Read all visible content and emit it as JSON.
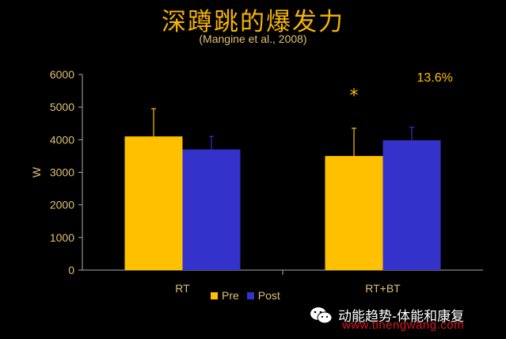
{
  "header": {
    "title": "深蹲跳的爆发力",
    "citation": "(Mangine et al., 2008)"
  },
  "chart_data": {
    "type": "bar",
    "categories": [
      "RT",
      "RT+BT"
    ],
    "series": [
      {
        "name": "Pre",
        "values": [
          4100,
          3500
        ],
        "error": [
          850,
          850
        ],
        "color": "#ffc000"
      },
      {
        "name": "Post",
        "values": [
          3700,
          3980
        ],
        "error": [
          400,
          400
        ],
        "color": "#3333cc"
      }
    ],
    "ylabel": "W",
    "ylim": [
      0,
      6000
    ],
    "yticks": [
      0,
      1000,
      2000,
      3000,
      4000,
      5000,
      6000
    ],
    "annotations": [
      {
        "text": "*",
        "category": "RT+BT"
      },
      {
        "text": "13.6%",
        "category": "RT+BT"
      }
    ],
    "legend_position": "bottom",
    "grid": false
  },
  "watermark": {
    "text": "动能趋势-体能和康复",
    "url": "www.tinengwang.com"
  }
}
